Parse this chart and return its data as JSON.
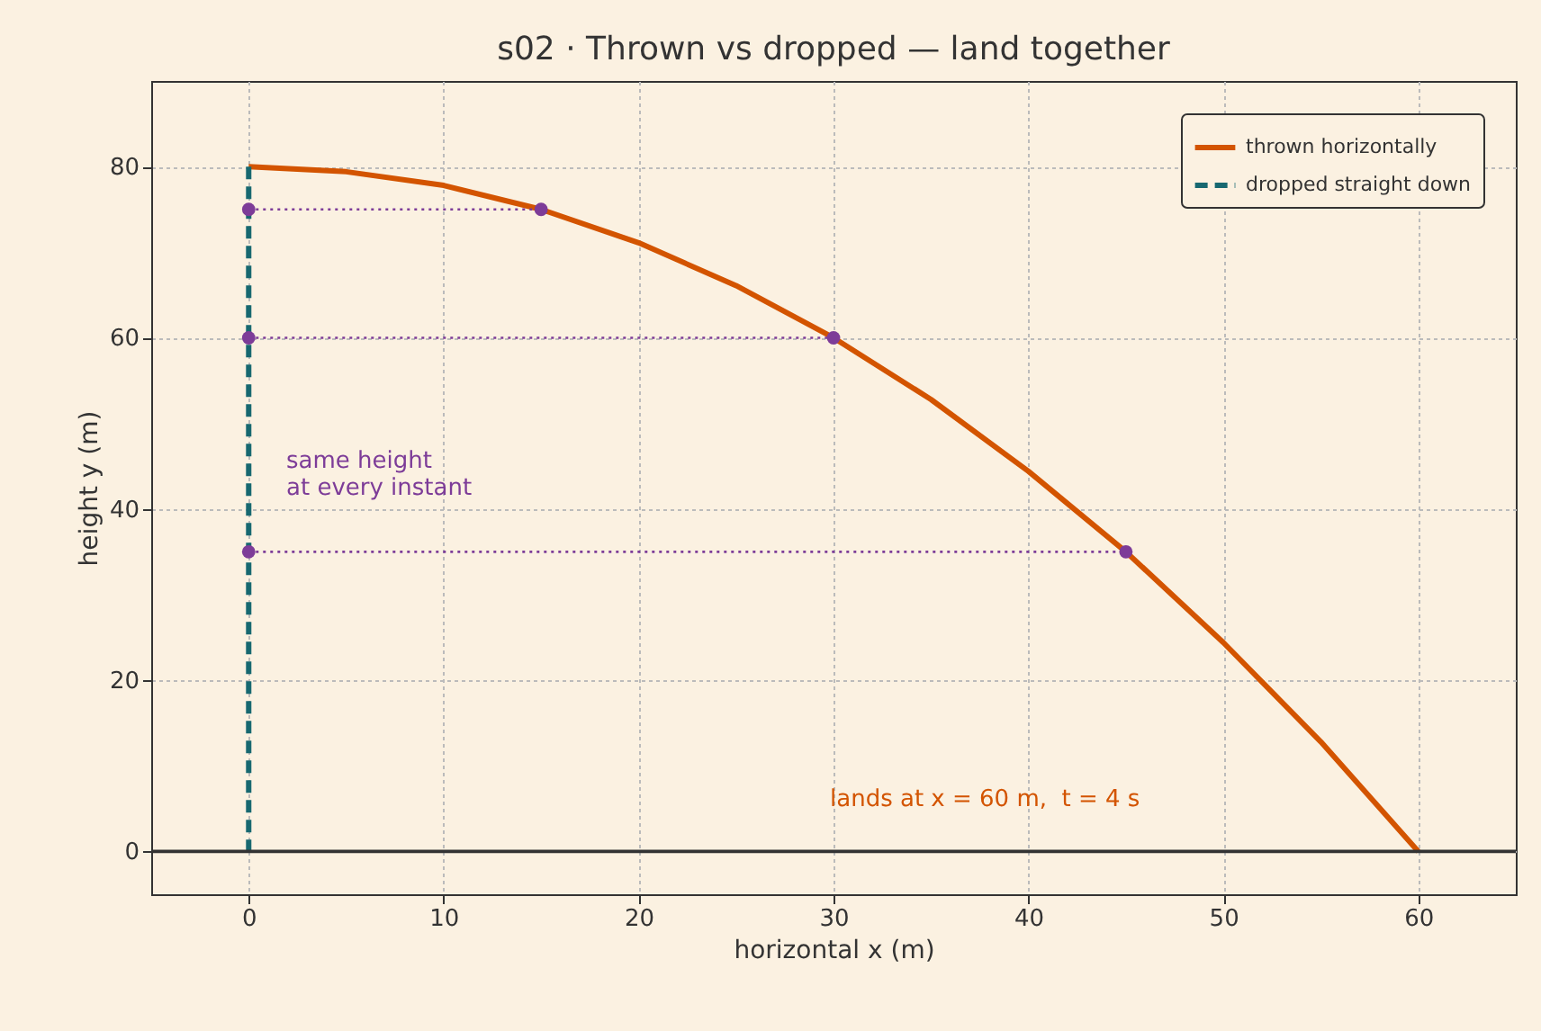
{
  "chart_data": {
    "type": "line",
    "title": "s02 · Thrown vs dropped — land together",
    "xlabel": "horizontal x (m)",
    "ylabel": "height y (m)",
    "xlim": [
      -5,
      65
    ],
    "ylim": [
      -5,
      90
    ],
    "xticks": [
      0,
      10,
      20,
      30,
      40,
      50,
      60
    ],
    "yticks": [
      0,
      20,
      40,
      60,
      80
    ],
    "grid": true,
    "legend": "top right",
    "series": [
      {
        "name": "thrown horizontally",
        "color": "#d35400",
        "line_style": "solid",
        "x": [
          0,
          5,
          10,
          15,
          20,
          25,
          30,
          35,
          40,
          45,
          50,
          55,
          60
        ],
        "values": [
          80,
          79.4,
          77.8,
          75,
          71.1,
          66.1,
          60,
          52.8,
          44.4,
          35,
          24.4,
          12.8,
          0
        ]
      },
      {
        "name": "dropped straight down",
        "color": "#176870",
        "line_style": "dashed",
        "x": [
          0,
          0
        ],
        "values": [
          80,
          0
        ]
      },
      {
        "color": "#7d3c98",
        "line_style": "dotted",
        "x": [
          0,
          15
        ],
        "values": [
          75,
          75
        ]
      },
      {
        "color": "#7d3c98",
        "line_style": "dotted",
        "x": [
          0,
          30
        ],
        "values": [
          60,
          60
        ]
      },
      {
        "color": "#7d3c98",
        "line_style": "dotted",
        "x": [
          0,
          45
        ],
        "values": [
          35,
          35
        ]
      },
      {
        "type": "scatter",
        "color": "#7d3c98",
        "marker": "circle",
        "x": [
          0,
          0,
          0,
          15,
          30,
          45
        ],
        "values": [
          75,
          60,
          35,
          75,
          60,
          35
        ]
      }
    ],
    "ref_lines": [
      {
        "axis": "y",
        "value": 0,
        "color": "#333333"
      }
    ],
    "annotations": [
      "same height\nat every instant",
      "lands at x = 60 m,  t = 4 s"
    ]
  }
}
